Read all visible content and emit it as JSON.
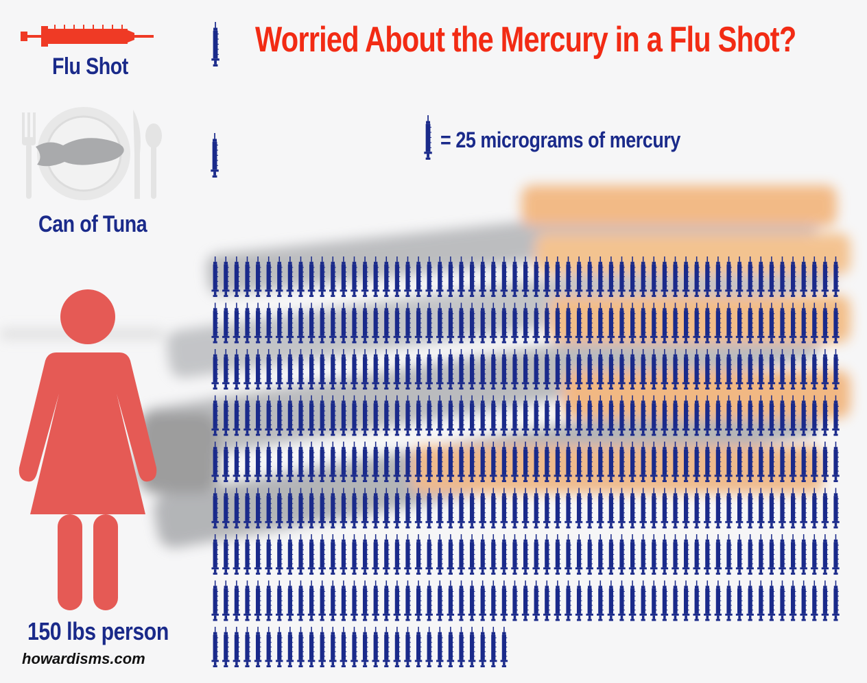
{
  "title": "Worried About the Mercury in a Flu Shot?",
  "legend": {
    "text": "= 25 micrograms of mercury",
    "unit_micrograms": 25,
    "icon": "syringe-icon"
  },
  "rows": [
    {
      "label": "Flu Shot",
      "icon": "red-syringe-icon",
      "syringes": 1
    },
    {
      "label": "Can of Tuna",
      "icon": "plate-fish-icon",
      "syringes": 1
    },
    {
      "label": "150 lbs person",
      "icon": "woman-figure-icon",
      "syringes": 500
    }
  ],
  "site_credit": "howardisms.com",
  "colors": {
    "title": "#f22b14",
    "label": "#1a2a8a",
    "syringe": "#1a2a8a",
    "person": "#e55a55",
    "red_syringe": "#ef3a25"
  },
  "chart_data": {
    "type": "pictograph",
    "title": "Worried About the Mercury in a Flu Shot?",
    "unit": "25 micrograms of mercury",
    "categories": [
      "Flu Shot",
      "Can of Tuna",
      "150 lbs person"
    ],
    "values": [
      1,
      1,
      500
    ]
  }
}
